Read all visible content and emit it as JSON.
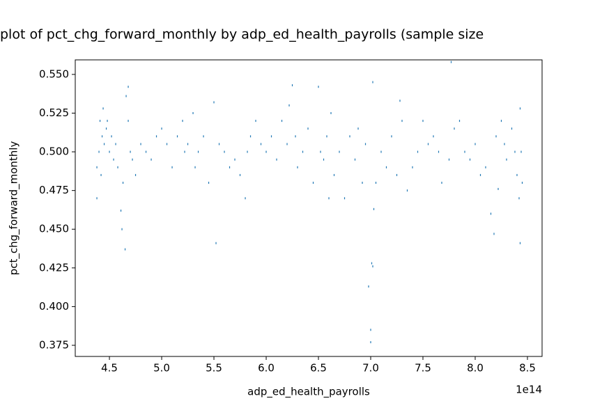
{
  "chart_data": {
    "type": "scatter",
    "title": "plot of pct_chg_forward_monthly by adp_ed_health_payrolls (sample size",
    "x_label": "adp_ed_health_payrolls",
    "y_label": "pct_chg_forward_monthly",
    "x_offset_label": "1e14",
    "xlim": [
      4.173,
      8.64
    ],
    "ylim": [
      0.3678,
      0.5594
    ],
    "xticks": [
      4.5,
      {
        "value": 5,
        "label": "5.0"
      },
      5.5,
      {
        "value": 6,
        "label": "6.0"
      },
      6.5,
      {
        "value": 7,
        "label": "7.0"
      },
      7.5,
      {
        "value": 8,
        "label": "8.0"
      },
      8.5
    ],
    "yticks": [
      0.375,
      {
        "value": 0.4,
        "label": "0.400"
      },
      0.425,
      {
        "value": 0.45,
        "label": "0.450"
      },
      0.475,
      {
        "value": 0.5,
        "label": "0.500"
      },
      0.525,
      {
        "value": 0.55,
        "label": "0.550"
      }
    ],
    "grid": false,
    "series": [
      {
        "name": "pct_chg_forward_monthly",
        "color": "#1f77b4",
        "x": [
          4.38,
          4.38,
          4.4,
          4.41,
          4.42,
          4.43,
          4.44,
          4.45,
          4.47,
          4.48,
          4.5,
          4.52,
          4.54,
          4.56,
          4.58,
          4.61,
          4.62,
          4.63,
          4.65,
          4.66,
          4.68,
          4.68,
          4.7,
          4.72,
          4.75,
          4.8,
          4.85,
          4.9,
          4.95,
          5.0,
          5.05,
          5.1,
          5.15,
          5.2,
          5.22,
          5.25,
          5.3,
          5.32,
          5.35,
          5.4,
          5.45,
          5.5,
          5.52,
          5.55,
          5.6,
          5.65,
          5.7,
          5.75,
          5.8,
          5.82,
          5.85,
          5.9,
          5.95,
          6.0,
          6.05,
          6.1,
          6.15,
          6.2,
          6.22,
          6.25,
          6.28,
          6.3,
          6.35,
          6.4,
          6.45,
          6.5,
          6.52,
          6.55,
          6.58,
          6.6,
          6.62,
          6.65,
          6.7,
          6.75,
          6.8,
          6.85,
          6.88,
          6.92,
          6.95,
          6.98,
          7.0,
          7.0,
          7.01,
          7.02,
          7.02,
          7.03,
          7.05,
          7.1,
          7.15,
          7.2,
          7.25,
          7.28,
          7.3,
          7.35,
          7.4,
          7.45,
          7.5,
          7.55,
          7.6,
          7.65,
          7.68,
          7.75,
          7.77,
          7.8,
          7.85,
          7.9,
          7.95,
          8.0,
          8.05,
          8.1,
          8.15,
          8.18,
          8.2,
          8.22,
          8.25,
          8.28,
          8.3,
          8.35,
          8.38,
          8.4,
          8.42,
          8.43,
          8.43,
          8.44,
          8.45
        ],
        "values": [
          0.47,
          0.49,
          0.5,
          0.52,
          0.485,
          0.51,
          0.528,
          0.505,
          0.515,
          0.52,
          0.5,
          0.51,
          0.495,
          0.505,
          0.49,
          0.462,
          0.45,
          0.48,
          0.437,
          0.536,
          0.542,
          0.52,
          0.5,
          0.495,
          0.485,
          0.505,
          0.5,
          0.495,
          0.51,
          0.515,
          0.505,
          0.49,
          0.51,
          0.52,
          0.5,
          0.505,
          0.525,
          0.49,
          0.5,
          0.51,
          0.48,
          0.532,
          0.441,
          0.505,
          0.5,
          0.49,
          0.495,
          0.485,
          0.47,
          0.5,
          0.51,
          0.52,
          0.505,
          0.5,
          0.51,
          0.495,
          0.52,
          0.505,
          0.53,
          0.543,
          0.51,
          0.49,
          0.5,
          0.515,
          0.48,
          0.542,
          0.5,
          0.495,
          0.51,
          0.47,
          0.525,
          0.485,
          0.5,
          0.47,
          0.51,
          0.495,
          0.515,
          0.48,
          0.505,
          0.413,
          0.377,
          0.385,
          0.428,
          0.545,
          0.426,
          0.463,
          0.48,
          0.5,
          0.49,
          0.51,
          0.485,
          0.533,
          0.52,
          0.475,
          0.49,
          0.5,
          0.52,
          0.505,
          0.51,
          0.5,
          0.48,
          0.495,
          0.558,
          0.515,
          0.52,
          0.5,
          0.495,
          0.505,
          0.485,
          0.49,
          0.46,
          0.447,
          0.51,
          0.476,
          0.52,
          0.505,
          0.495,
          0.515,
          0.5,
          0.485,
          0.47,
          0.441,
          0.528,
          0.5,
          0.48
        ]
      }
    ]
  }
}
